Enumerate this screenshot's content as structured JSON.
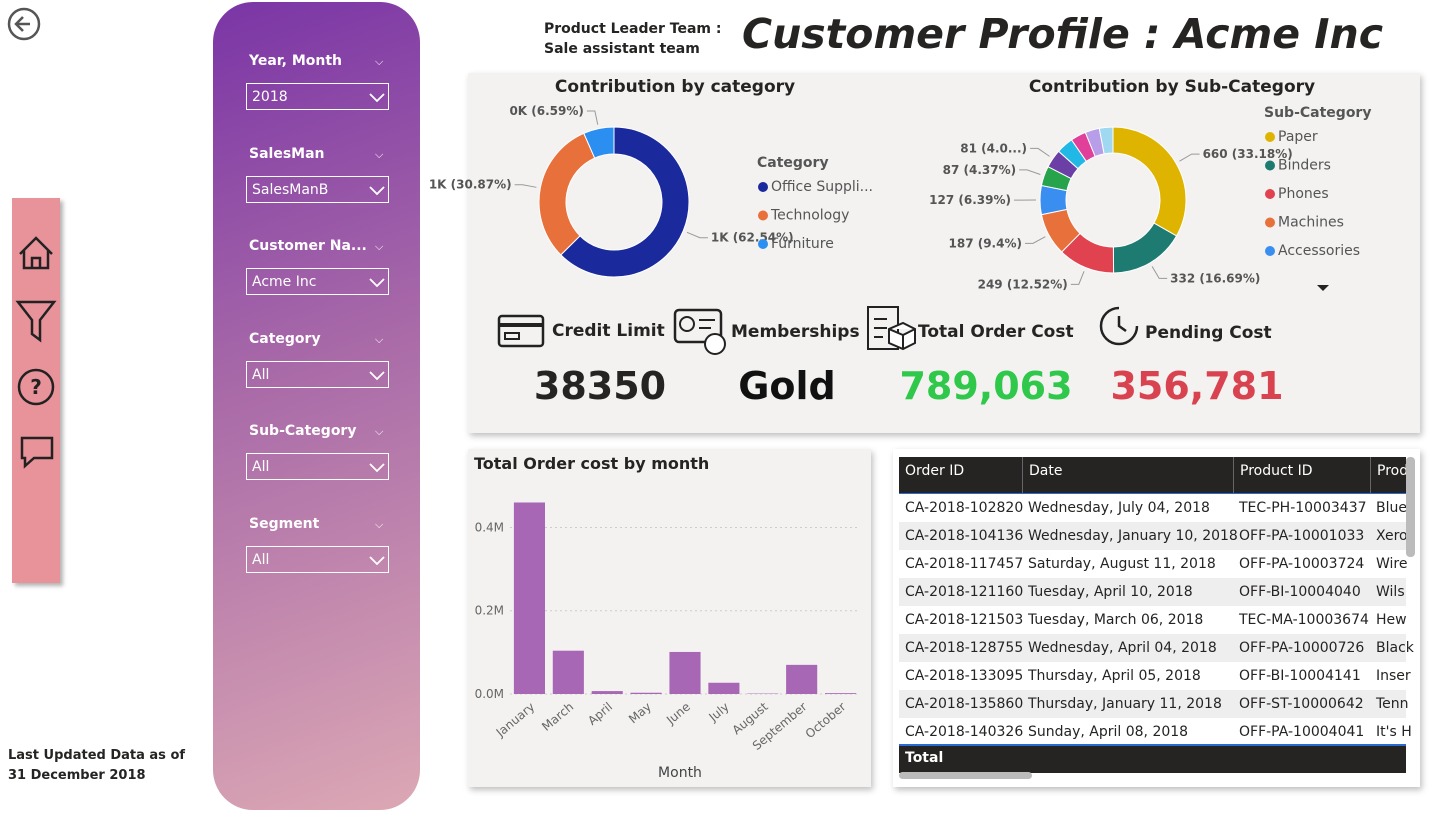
{
  "header": {
    "team_label": "Product Leader Team :",
    "team": "Sale assistant team",
    "title": "Customer Profile : Acme Inc"
  },
  "footer": "Last Updated Data as of 31 December 2018",
  "filters": [
    {
      "label": "Year, Month",
      "value": "2018"
    },
    {
      "label": "SalesMan",
      "value": "SalesManB"
    },
    {
      "label": "Customer Na...",
      "value": "Acme Inc"
    },
    {
      "label": "Category",
      "value": "All"
    },
    {
      "label": "Sub-Category",
      "value": "All"
    },
    {
      "label": "Segment",
      "value": "All"
    }
  ],
  "kpis": [
    {
      "label": "Credit Limit",
      "value": "38350"
    },
    {
      "label": "Memberships",
      "value": "Gold"
    },
    {
      "label": "Total Order Cost",
      "value": "789,063"
    },
    {
      "label": "Pending Cost",
      "value": "356,781"
    }
  ],
  "chart_data": [
    {
      "type": "pie",
      "title": "Contribution by category",
      "legend_title": "Category",
      "categories": [
        "Office Suppli...",
        "Technology",
        "Furniture"
      ],
      "values": [
        62.54,
        30.87,
        6.59
      ],
      "value_labels": [
        "1K (62.54%)",
        "1K (30.87%)",
        "0K (6.59%)"
      ],
      "colors": [
        "#1a2a9c",
        "#e8703a",
        "#2a8ff0"
      ]
    },
    {
      "type": "pie",
      "title": "Contribution by Sub-Category",
      "legend_title": "Sub-Category",
      "categories": [
        "Paper",
        "Binders",
        "Phones",
        "Machines",
        "Accessories",
        null,
        null,
        null,
        null,
        null,
        null
      ],
      "values": [
        660,
        332,
        249,
        187,
        127,
        87,
        81,
        75,
        68,
        63,
        60
      ],
      "value_labels": [
        "660 (33.18%)",
        "332 (16.69%)",
        "249 (12.52%)",
        "187 (9.4%)",
        "127 (6.39%)",
        "87 (4.37%)",
        "81 (4.0...)",
        null,
        null,
        null,
        null
      ],
      "colors": [
        "#dfb400",
        "#1e7b72",
        "#e0424f",
        "#e8703a",
        "#3a8ef0",
        "#26a34b",
        "#6b3fa6",
        "#22b8e6",
        "#e0409a",
        "#b89ee8",
        "#9fd8f0"
      ]
    },
    {
      "type": "bar",
      "title": "Total Order cost by month",
      "x_label": "Month",
      "categories": [
        "January",
        "March",
        "April",
        "May",
        "June",
        "July",
        "August",
        "September",
        "October"
      ],
      "values": [
        460000,
        104000,
        7000,
        3000,
        101000,
        27000,
        1000,
        70000,
        2000
      ],
      "color": "#a867b5",
      "ylim": [
        0,
        490000
      ],
      "yticks": [
        {
          "value": 0,
          "label": "0.0M"
        },
        {
          "value": 200000,
          "label": "0.2M"
        },
        {
          "value": 400000,
          "label": "0.4M"
        }
      ],
      "grid": true
    }
  ],
  "table": {
    "columns": [
      "Order ID",
      "Date",
      "Product ID",
      "Prod"
    ],
    "rows": [
      [
        "CA-2018-102820",
        "Wednesday, July 04, 2018",
        "TEC-PH-10003437",
        "Blue"
      ],
      [
        "CA-2018-104136",
        "Wednesday, January 10, 2018",
        "OFF-PA-10001033",
        "Xero"
      ],
      [
        "CA-2018-117457",
        "Saturday, August 11, 2018",
        "OFF-PA-10003724",
        "Wire"
      ],
      [
        "CA-2018-121160",
        "Tuesday, April 10, 2018",
        "OFF-BI-10004040",
        "Wils"
      ],
      [
        "CA-2018-121503",
        "Tuesday, March 06, 2018",
        "TEC-MA-10003674",
        "Hew"
      ],
      [
        "CA-2018-128755",
        "Wednesday, April 04, 2018",
        "OFF-PA-10000726",
        "Black"
      ],
      [
        "CA-2018-133095",
        "Thursday, April 05, 2018",
        "OFF-BI-10004141",
        "Inser"
      ],
      [
        "CA-2018-135860",
        "Thursday, January 11, 2018",
        "OFF-ST-10000642",
        "Tenn"
      ],
      [
        "CA-2018-140326",
        "Sunday, April 08, 2018",
        "OFF-PA-10004041",
        "It's H"
      ]
    ],
    "total_label": "Total"
  }
}
